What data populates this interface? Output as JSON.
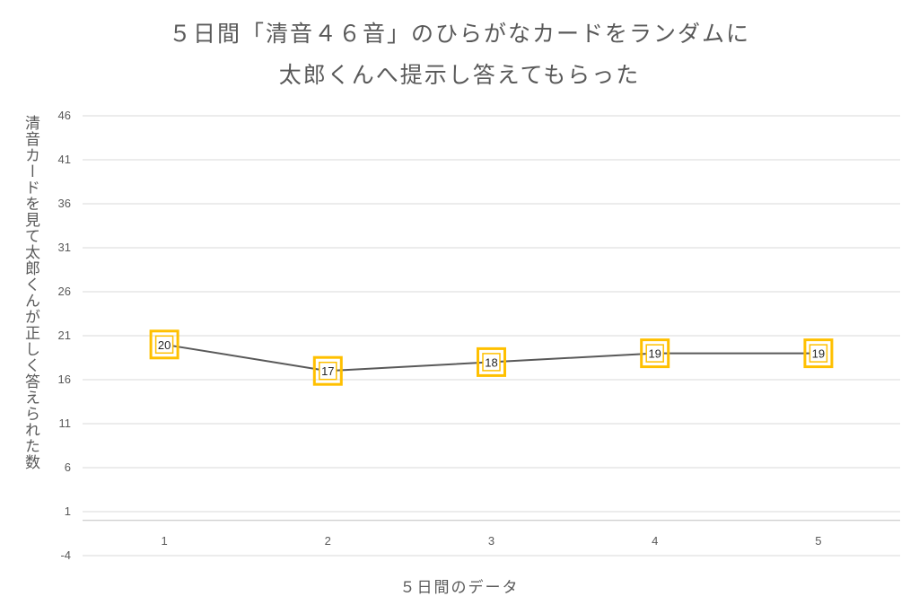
{
  "chart_data": {
    "type": "line",
    "title_line1": "５日間「清音４６音」のひらがなカードをランダムに",
    "title_line2": "太郎くんへ提示し答えてもらった",
    "xlabel": "５日間のデータ",
    "ylabel": "清音カードを見て太郎くんが正しく答えられた数",
    "categories": [
      "1",
      "2",
      "3",
      "4",
      "5"
    ],
    "values": [
      20,
      17,
      18,
      19,
      19
    ],
    "data_labels": [
      "20",
      "17",
      "18",
      "19",
      "19"
    ],
    "yticks": [
      "46",
      "41",
      "36",
      "31",
      "26",
      "21",
      "16",
      "11",
      "6",
      "1",
      "-4"
    ],
    "ytick_values": [
      46,
      41,
      36,
      31,
      26,
      21,
      16,
      11,
      6,
      1,
      -4
    ],
    "ylim": [
      -4,
      46
    ],
    "grid": true,
    "legend": "none",
    "colors": {
      "line": "#595959",
      "marker": "#FFC000",
      "grid": "#d9d9d9",
      "axis": "#bfbfbf"
    }
  }
}
